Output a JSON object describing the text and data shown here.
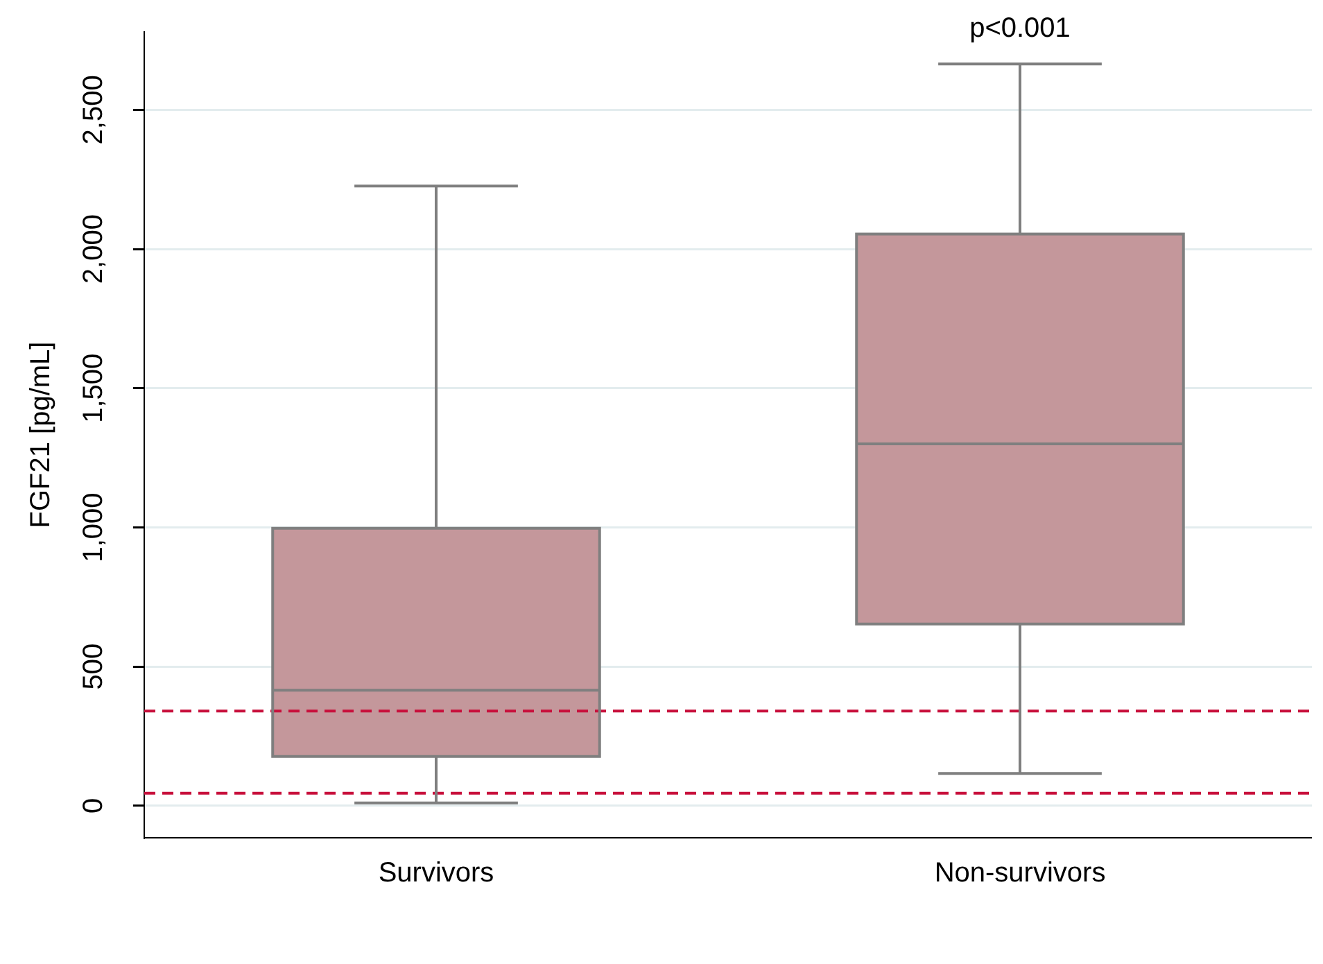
{
  "chart_data": {
    "type": "box",
    "ylabel": "FGF21 [pg/mL]",
    "categories": [
      "Survivors",
      "Non-survivors"
    ],
    "color": "#c4979b",
    "boxes": [
      {
        "low": 10,
        "q1": 177,
        "median": 415,
        "q3": 997,
        "high": 2226
      },
      {
        "low": 116,
        "q1": 653,
        "median": 1300,
        "q3": 2054,
        "high": 2665
      }
    ],
    "ylim": [
      -115,
      2780
    ],
    "yticks": [
      0,
      500,
      {
        "value": 1000,
        "label": "1,000"
      },
      {
        "value": 1500,
        "label": "1,500"
      },
      {
        "value": 2000,
        "label": "2,000"
      },
      {
        "value": 2500,
        "label": "2,500"
      }
    ],
    "grid": "y",
    "ref_lines": [
      {
        "axis": "y",
        "value": 340,
        "color": "#c8103c",
        "line_style": "dashed"
      },
      {
        "axis": "y",
        "value": 45,
        "color": "#c8103c",
        "line_style": "dashed"
      }
    ],
    "annotations": [
      "p<0.001"
    ]
  }
}
